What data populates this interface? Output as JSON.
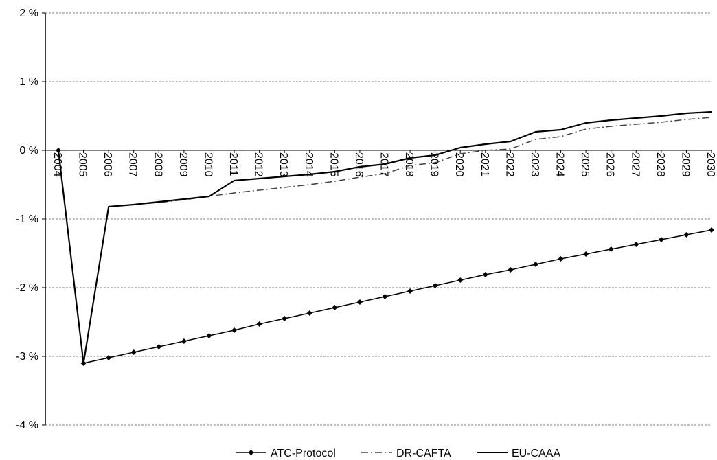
{
  "chart_data": {
    "type": "line",
    "title": "",
    "xlabel": "",
    "ylabel": "",
    "x": [
      2004,
      2005,
      2006,
      2007,
      2008,
      2009,
      2010,
      2011,
      2012,
      2013,
      2014,
      2015,
      2016,
      2017,
      2018,
      2019,
      2020,
      2021,
      2022,
      2023,
      2024,
      2025,
      2026,
      2027,
      2028,
      2029,
      2030
    ],
    "x_tick_labels": [
      "2004",
      "2005",
      "2006",
      "2007",
      "2008",
      "2009",
      "2010",
      "2011",
      "2012",
      "2013",
      "2014",
      "2015",
      "2016",
      "2017",
      "2018",
      "2019",
      "2020",
      "2021",
      "2022",
      "2023",
      "2024",
      "2025",
      "2026",
      "2027",
      "2028",
      "2029",
      "2030"
    ],
    "ylim": [
      -4,
      2
    ],
    "y_ticks": [
      2,
      1,
      0,
      -1,
      -2,
      -3,
      -4
    ],
    "y_tick_labels": [
      "2 %",
      "1 %",
      "0 %",
      "-1 %",
      "-2 %",
      "-3 %",
      "-4 %"
    ],
    "grid": "horizontal dashed",
    "legend_position": "bottom",
    "series": [
      {
        "name": "ATC-Protocol",
        "color": "#000000",
        "style": "solid with diamond markers",
        "values": [
          0.0,
          -3.1,
          -3.02,
          -2.94,
          -2.86,
          -2.78,
          -2.7,
          -2.62,
          -2.53,
          -2.45,
          -2.37,
          -2.29,
          -2.21,
          -2.13,
          -2.05,
          -1.97,
          -1.89,
          -1.81,
          -1.74,
          -1.66,
          -1.58,
          -1.51,
          -1.44,
          -1.37,
          -1.3,
          -1.23,
          -1.16
        ]
      },
      {
        "name": "DR-CAFTA",
        "color": "#404040",
        "style": "dash-dot",
        "values": [
          0.0,
          -3.1,
          -0.82,
          -0.79,
          -0.76,
          -0.72,
          -0.67,
          -0.62,
          -0.58,
          -0.54,
          -0.5,
          -0.45,
          -0.39,
          -0.34,
          -0.22,
          -0.18,
          -0.05,
          0.0,
          0.02,
          0.16,
          0.2,
          0.31,
          0.35,
          0.38,
          0.41,
          0.45,
          0.48
        ]
      },
      {
        "name": "EU-CAAA",
        "color": "#000000",
        "style": "solid",
        "values": [
          0.0,
          -3.1,
          -0.82,
          -0.79,
          -0.75,
          -0.71,
          -0.67,
          -0.44,
          -0.41,
          -0.38,
          -0.35,
          -0.31,
          -0.24,
          -0.2,
          -0.11,
          -0.07,
          0.04,
          0.09,
          0.13,
          0.27,
          0.3,
          0.4,
          0.44,
          0.47,
          0.5,
          0.54,
          0.56
        ]
      }
    ]
  }
}
